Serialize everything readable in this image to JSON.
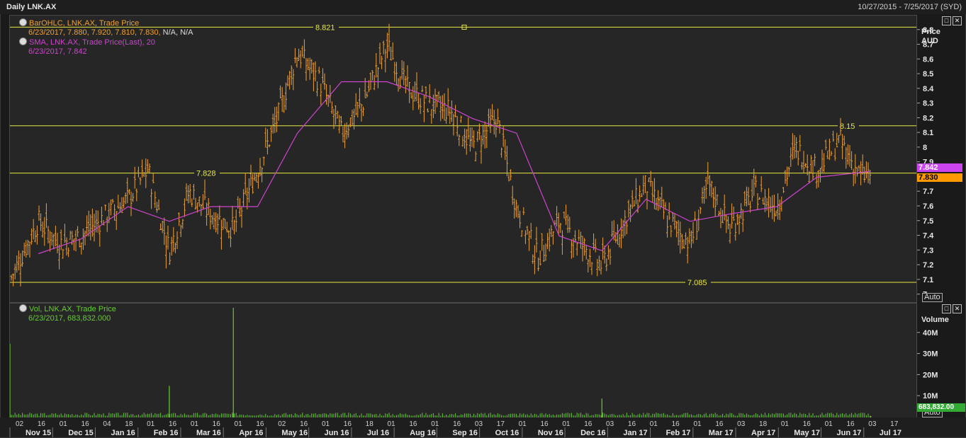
{
  "window": {
    "title": "Daily LNK.AX",
    "range": "10/27/2015 - 7/25/2017 (SYD)"
  },
  "price_panel": {
    "legend": [
      {
        "name": "BarOHLC, LNK.AX, Trade Price",
        "values": "6/23/2017, 7.880, 7.920, 7.810, 7.830,",
        "extra": " N/A, N/A",
        "color": "#f0a030"
      },
      {
        "name": "SMA, LNK.AX, Trade Price(Last),  20",
        "values": "6/23/2017, 7.842",
        "extra": "",
        "color": "#cc44cc"
      }
    ],
    "axis_title": "Price",
    "axis_unit": "AUD",
    "last_sma_badge": "7.842",
    "last_close_badge": "7.830",
    "auto_label": "Auto",
    "lines": [
      {
        "label": "8.821",
        "value": 8.821
      },
      {
        "label": "8.15",
        "value": 8.15
      },
      {
        "label": "7.828",
        "value": 7.828
      },
      {
        "label": "7.085",
        "value": 7.085
      }
    ]
  },
  "volume_panel": {
    "legend": {
      "name": "Vol, LNK.AX, Trade Price",
      "values": "6/23/2017, 683,832.000",
      "color": "#66cc33"
    },
    "axis_title": "Volume",
    "last_badge": "683,832.00",
    "auto_label": "Auto"
  },
  "colors": {
    "bars": "#f0a030",
    "sma": "#cc44cc",
    "volume": "#66cc33",
    "hline": "#e8e840",
    "sma_badge": "#cc44ee",
    "close_badge": "#ff9900"
  },
  "x_axis": {
    "day_ticks": [
      "02",
      "16",
      "01",
      "16",
      "04",
      "18",
      "01",
      "16",
      "01",
      "16",
      "01",
      "16",
      "02",
      "16",
      "01",
      "16",
      "18",
      "01",
      "16",
      "01",
      "16",
      "03",
      "17",
      "01",
      "16",
      "01",
      "16",
      "03",
      "16",
      "01",
      "16",
      "01",
      "16",
      "03",
      "18",
      "01",
      "16",
      "01",
      "16",
      "03",
      "17"
    ],
    "months": [
      "Nov 15",
      "Dec 15",
      "Jan 16",
      "Feb 16",
      "Mar 16",
      "Apr 16",
      "May 16",
      "Jun 16",
      "Jul 16",
      "Aug 16",
      "Sep 16",
      "Oct 16",
      "Nov 16",
      "Dec 16",
      "Jan 17",
      "Feb 17",
      "Mar 17",
      "Apr 17",
      "May 17",
      "Jun 17",
      "Jul 17"
    ]
  },
  "chart_data": [
    {
      "type": "bar",
      "subtype": "ohlc",
      "title": "BarOHLC, LNK.AX, Trade Price",
      "ylabel": "Price AUD",
      "ylim": [
        6.95,
        8.9
      ],
      "yticks": [
        "8.8",
        "8.7",
        "8.6",
        "8.5",
        "8.4",
        "8.3",
        "8.2",
        "8.1",
        "8",
        "7.9",
        "7.8",
        "7.7",
        "7.6",
        "7.5",
        "7.4",
        "7.3",
        "7.2",
        "7.1",
        "7"
      ],
      "x_range": [
        "10/27/2015",
        "7/25/2017"
      ],
      "series": [
        {
          "name": "BarOHLC, LNK.AX, Trade Price",
          "x": [
            "10/27/2015",
            "11/16/2015",
            "12/01/2015",
            "12/16/2015",
            "01/04/2016",
            "01/18/2016",
            "02/01/2016",
            "02/16/2016",
            "03/01/2016",
            "03/16/2016",
            "04/01/2016",
            "04/18/2016",
            "05/02/2016",
            "05/16/2016",
            "06/01/2016",
            "06/16/2016",
            "07/01/2016",
            "07/18/2016",
            "08/01/2016",
            "08/16/2016",
            "09/01/2016",
            "09/16/2016",
            "10/03/2016",
            "10/17/2016",
            "11/01/2016",
            "11/16/2016",
            "12/01/2016",
            "12/16/2016",
            "01/03/2017",
            "01/16/2017",
            "02/01/2017",
            "02/16/2017",
            "03/01/2017",
            "03/16/2017",
            "04/03/2017",
            "04/18/2017",
            "05/01/2017",
            "05/16/2017",
            "06/01/2017",
            "06/16/2017",
            "06/23/2017"
          ],
          "values": [
            7.1,
            7.5,
            7.35,
            7.4,
            7.55,
            7.65,
            7.85,
            7.3,
            7.7,
            7.55,
            7.45,
            7.85,
            8.2,
            8.65,
            8.45,
            8.1,
            8.3,
            8.7,
            8.4,
            8.3,
            8.25,
            8.0,
            8.2,
            7.6,
            7.25,
            7.5,
            7.35,
            7.2,
            7.55,
            7.75,
            7.5,
            7.35,
            7.75,
            7.45,
            7.7,
            7.6,
            8.0,
            7.85,
            8.05,
            7.8,
            7.83
          ]
        },
        {
          "name": "SMA, LNK.AX, Trade Price(Last),  20",
          "x": [
            "11/16/2015",
            "12/16/2015",
            "01/18/2016",
            "02/16/2016",
            "03/16/2016",
            "04/18/2016",
            "05/16/2016",
            "06/16/2016",
            "07/18/2016",
            "08/16/2016",
            "09/16/2016",
            "10/17/2016",
            "11/16/2016",
            "12/16/2016",
            "01/16/2017",
            "02/16/2017",
            "03/16/2017",
            "04/18/2017",
            "05/16/2017",
            "06/23/2017"
          ],
          "values": [
            7.28,
            7.38,
            7.6,
            7.5,
            7.6,
            7.6,
            8.1,
            8.45,
            8.45,
            8.35,
            8.2,
            8.1,
            7.4,
            7.3,
            7.65,
            7.5,
            7.55,
            7.6,
            7.8,
            7.84
          ]
        }
      ],
      "annotations": [
        "8.821",
        "8.15",
        "7.828",
        "7.085"
      ]
    },
    {
      "type": "bar",
      "title": "Vol, LNK.AX, Trade Price",
      "ylabel": "Volume",
      "ylim": [
        0,
        50000000
      ],
      "yticks": [
        "40M",
        "30M",
        "20M",
        "10M"
      ],
      "series": [
        {
          "name": "Vol, LNK.AX, Trade Price",
          "x": [
            "10/27/2015",
            "02/16/2016",
            "04/01/2016",
            "12/16/2016",
            "06/23/2017"
          ],
          "values": [
            35000000,
            15000000,
            52000000,
            9000000,
            683832
          ]
        }
      ]
    }
  ]
}
